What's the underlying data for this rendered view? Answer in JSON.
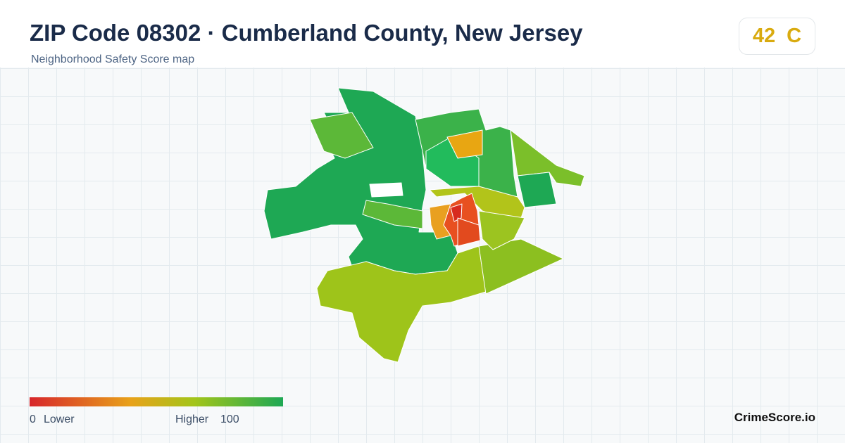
{
  "header": {
    "title": "ZIP Code 08302 · Cumberland County, New Jersey",
    "subtitle": "Neighborhood Safety Score map",
    "score": 42,
    "grade": "C"
  },
  "legend": {
    "min": 0,
    "low_label": "Lower",
    "high_label": "Higher",
    "max": 100
  },
  "footer": {
    "brand": "CrimeScore.io"
  }
}
